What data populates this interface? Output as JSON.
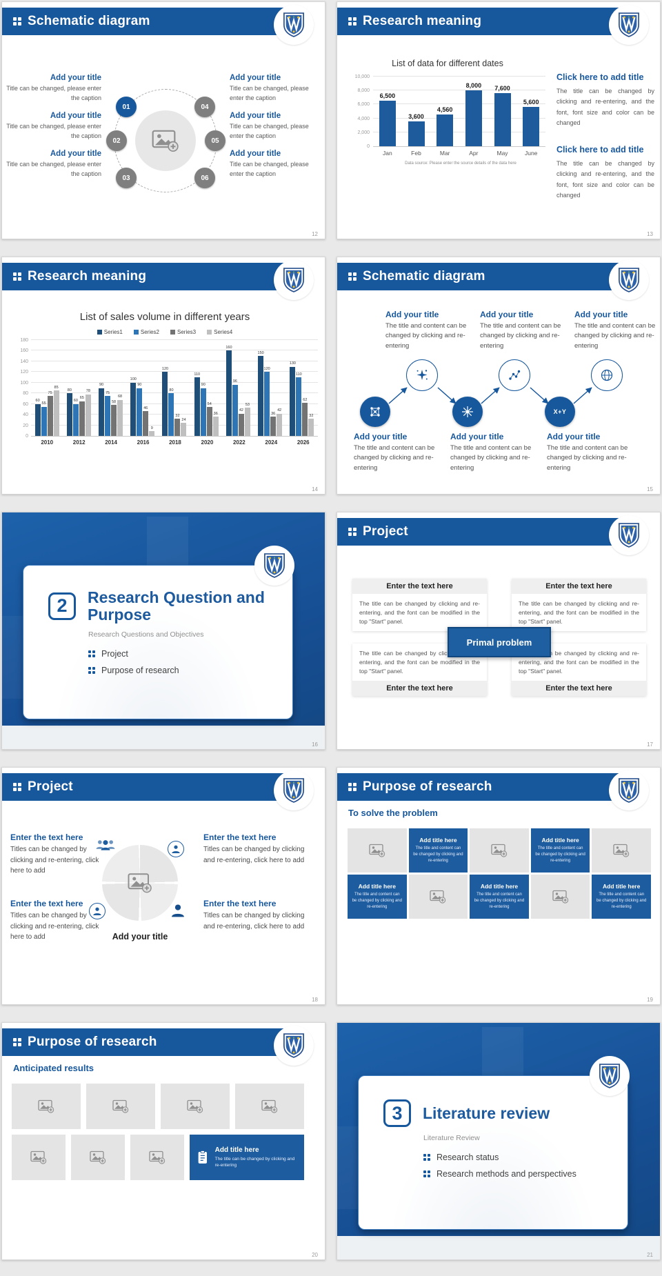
{
  "colors": {
    "primary": "#17579c",
    "bar_blue": "#1d5b9d",
    "series_colors": [
      "#1f4e79",
      "#2e75b6",
      "#737373",
      "#bfbfbf"
    ],
    "tile_gray": "#e4e4e4",
    "tile_blue": "#1d5c9e",
    "canvas_bg": "#e9e9e9"
  },
  "slides": [
    {
      "name": "schematic-circle",
      "header": "Schematic diagram",
      "page": "12",
      "numbers": [
        "01",
        "02",
        "03",
        "04",
        "05",
        "06"
      ],
      "left_blocks": [
        {
          "title": "Add your title",
          "body": "Title can be changed, please enter the caption"
        },
        {
          "title": "Add your title",
          "body": "Title can be changed, please enter the caption"
        },
        {
          "title": "Add your title",
          "body": "Title can be changed, please enter the caption"
        }
      ],
      "right_blocks": [
        {
          "title": "Add your title",
          "body": "Title can be changed, please enter the caption"
        },
        {
          "title": "Add your title",
          "body": "Title can be changed, please enter the caption"
        },
        {
          "title": "Add your title",
          "body": "Title can be changed, please enter the caption"
        }
      ]
    },
    {
      "name": "research-meaning-dates",
      "header": "Research meaning",
      "page": "13",
      "right_blocks": [
        {
          "title": "Click here to add title",
          "body": "The title can be changed by clicking and re-entering, and the font, font size and color can be changed"
        },
        {
          "title": "Click here to add title",
          "body": "The title can be changed by clicking and re-entering, and the font, font size and color can be changed"
        }
      ]
    },
    {
      "name": "research-meaning-years",
      "header": "Research meaning",
      "page": "14"
    },
    {
      "name": "schematic-flow",
      "header": "Schematic diagram",
      "page": "15",
      "formula_text": "X+Y",
      "top_blocks": [
        {
          "title": "Add your title",
          "body": "The title and content can be changed by clicking and re-entering"
        },
        {
          "title": "Add your title",
          "body": "The title and content can be changed by clicking and re-entering"
        },
        {
          "title": "Add your title",
          "body": "The title and content can be changed by clicking and re-entering"
        }
      ],
      "bottom_blocks": [
        {
          "title": "Add your title",
          "body": "The title and content can be changed by clicking and re-entering"
        },
        {
          "title": "Add your title",
          "body": "The title and content can be changed by clicking and re-entering"
        },
        {
          "title": "Add your title",
          "body": "The title and content can be changed by clicking and re-entering"
        }
      ]
    },
    {
      "name": "section-divider-2",
      "page": "16",
      "number": "2",
      "title": "Research Question and Purpose",
      "subtitle": "Research Questions and Objectives",
      "bullets": [
        "Project",
        "Purpose of research"
      ]
    },
    {
      "name": "project-primal-problem",
      "header": "Project",
      "page": "17",
      "center_label": "Primal problem",
      "boxes": [
        {
          "title": "Enter the text here",
          "body": "The title can be changed by clicking and re-entering, and the font can be modified in the top \"Start\" panel."
        },
        {
          "title": "Enter the text here",
          "body": "The title can be changed by clicking and re-entering, and the font can be modified in the top \"Start\" panel."
        },
        {
          "title": "Enter the text here",
          "body": "The title can be changed by clicking and re-entering, and the font can be modified in the top \"Start\" panel."
        },
        {
          "title": "Enter the text here",
          "body": "The title can be changed by clicking and re-entering, and the font can be modified in the top \"Start\" panel."
        }
      ]
    },
    {
      "name": "project-team-circle",
      "header": "Project",
      "page": "18",
      "center_label": "Add your title",
      "blocks": [
        {
          "title": "Enter the text here",
          "body": "Titles can be changed by clicking and re-entering, click here to add"
        },
        {
          "title": "Enter the text here",
          "body": "Titles can be changed by clicking and re-entering, click here to add"
        },
        {
          "title": "Enter the text here",
          "body": "Titles can be changed by clicking and re-entering, click here to add"
        },
        {
          "title": "Enter the text here",
          "body": "Titles can be changed by clicking and re-entering, click here to add"
        }
      ]
    },
    {
      "name": "purpose-solve-problem",
      "header": "Purpose of research",
      "page": "19",
      "heading": "To solve the problem",
      "tile": {
        "title": "Add title here",
        "body": "The title and content can be changed by clicking and re-entering"
      }
    },
    {
      "name": "purpose-anticipated-results",
      "header": "Purpose of research",
      "page": "20",
      "heading": "Anticipated results",
      "tile": {
        "title": "Add title here",
        "body": "The title can be changed by clicking and re-entering"
      }
    },
    {
      "name": "section-divider-3",
      "page": "21",
      "number": "3",
      "title": "Literature review",
      "subtitle": "Literature Review",
      "bullets": [
        "Research status",
        "Research methods and perspectives"
      ]
    }
  ],
  "chart_data": [
    {
      "type": "bar",
      "title": "List of data for different dates",
      "categories": [
        "Jan",
        "Feb",
        "Mar",
        "Apr",
        "May",
        "June"
      ],
      "values": [
        6500,
        3600,
        4560,
        8000,
        7600,
        5600
      ],
      "value_labels": [
        "6,500",
        "3,600",
        "4,560",
        "8,000",
        "7,600",
        "5,600"
      ],
      "ylim": [
        0,
        10000
      ],
      "yticks": [
        "0",
        "2,000",
        "4,000",
        "6,000",
        "8,000",
        "10,000"
      ],
      "grid": true,
      "legend_position": "none",
      "bar_color": "#1d5b9d",
      "caption": "Data source: Please enter the source details of the data here"
    },
    {
      "type": "bar",
      "title": "List of sales volume in different years",
      "categories": [
        "2010",
        "2012",
        "2014",
        "2016",
        "2018",
        "2020",
        "2022",
        "2024",
        "2026"
      ],
      "series": [
        {
          "name": "Series1",
          "color": "#1f4e79",
          "values": [
            60,
            80,
            90,
            100,
            120,
            110,
            160,
            150,
            130
          ]
        },
        {
          "name": "Series2",
          "color": "#2e75b6",
          "values": [
            55,
            60,
            75,
            90,
            80,
            90,
            96,
            120,
            110
          ]
        },
        {
          "name": "Series3",
          "color": "#737373",
          "values": [
            75,
            65,
            58,
            46,
            32,
            54,
            42,
            36,
            62
          ]
        },
        {
          "name": "Series4",
          "color": "#bfbfbf",
          "values": [
            85,
            78,
            68,
            9,
            24,
            36,
            53,
            42,
            32
          ]
        }
      ],
      "ylim": [
        0,
        180
      ],
      "yticks": [
        "0",
        "20",
        "40",
        "60",
        "80",
        "100",
        "120",
        "140",
        "160",
        "180"
      ],
      "grid": true,
      "legend_position": "top"
    }
  ]
}
